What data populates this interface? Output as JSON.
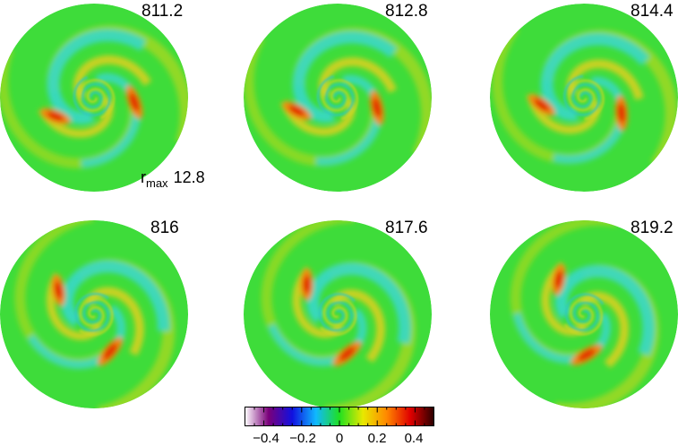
{
  "panels": [
    {
      "time": "811.2",
      "rot": 0
    },
    {
      "time": "812.8",
      "rot": 8
    },
    {
      "time": "814.4",
      "rot": 16
    },
    {
      "time": "816",
      "rot": 60
    },
    {
      "time": "817.6",
      "rot": 70
    },
    {
      "time": "819.2",
      "rot": 80
    }
  ],
  "rmax": {
    "label": "r",
    "sub": "max",
    "value": "12.8"
  },
  "colorbar": {
    "ticks": [
      "−0.4",
      "−0.2",
      "0",
      "0.2",
      "0.4"
    ],
    "tick_values": [
      -0.4,
      -0.2,
      0,
      0.2,
      0.4
    ],
    "range": [
      -0.5,
      0.5
    ],
    "colors": [
      "#ffffff",
      "#7a007a",
      "#1010e0",
      "#10b8ff",
      "#20e020",
      "#e8e800",
      "#ff8800",
      "#e00000",
      "#2a0000"
    ]
  }
}
